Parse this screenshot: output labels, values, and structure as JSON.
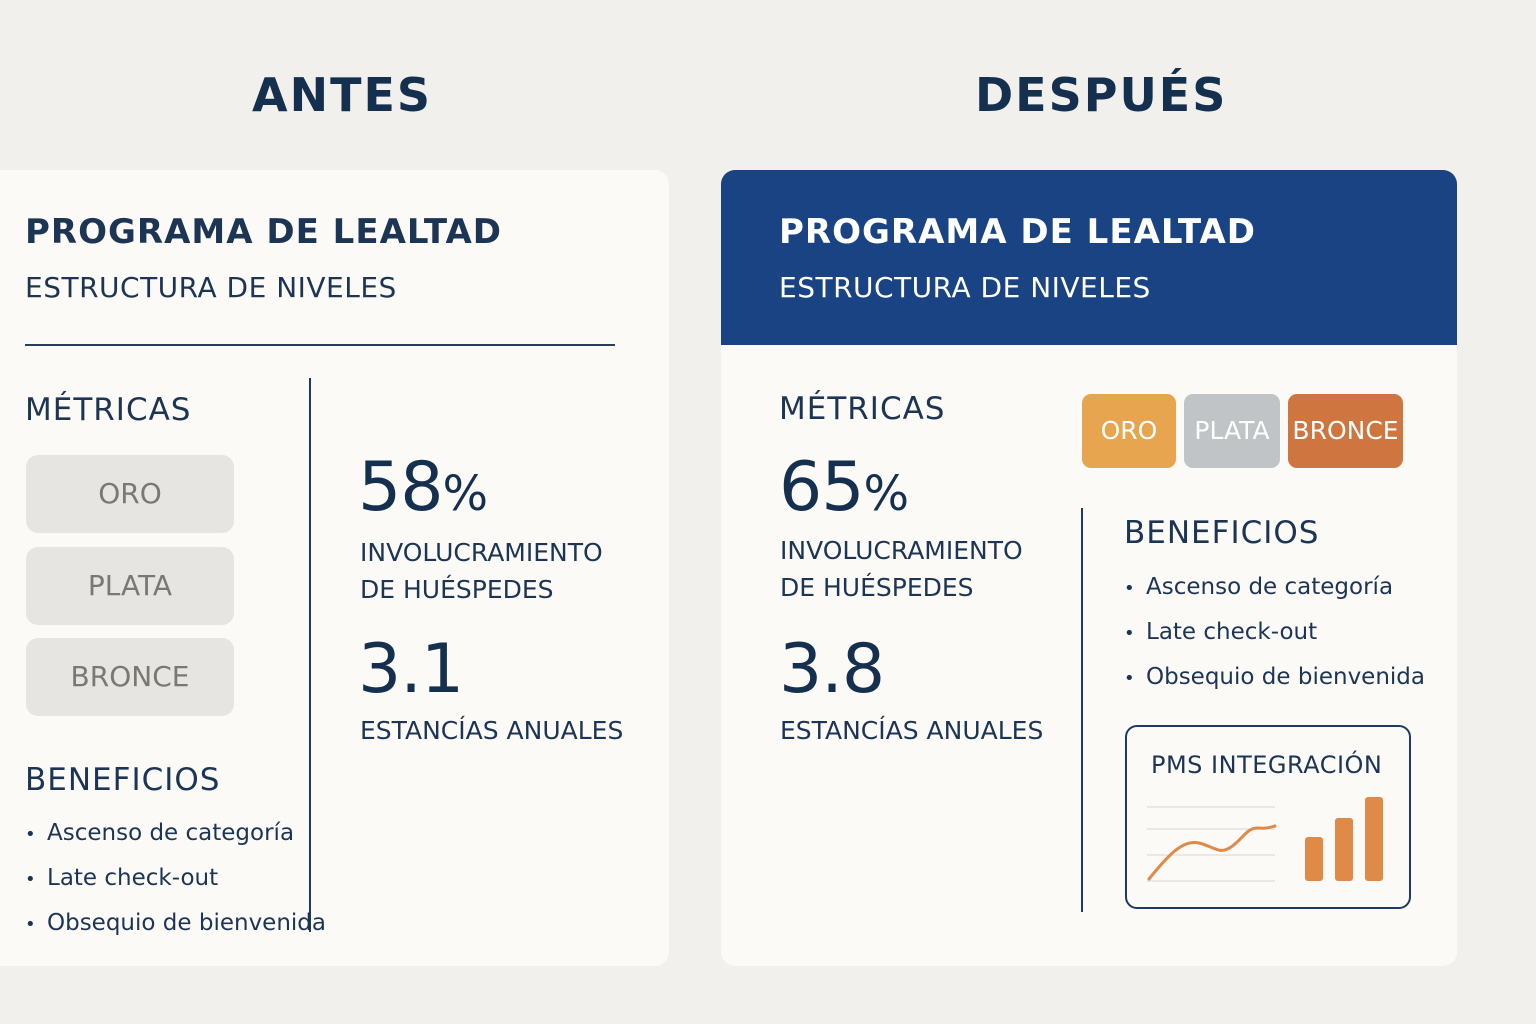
{
  "before": {
    "heading": "ANTES",
    "program_title": "PROGRAMA DE LEALTAD",
    "program_subtitle": "ESTRUCTURA DE NIVELES",
    "metrics_heading": "MÉTRICAS",
    "tiers": [
      "ORO",
      "PLATA",
      "BRONCE"
    ],
    "engagement_value": "58",
    "engagement_unit": "%",
    "engagement_label_1": "INVOLUCRAMIENTO",
    "engagement_label_2": "DE HUÉSPEDES",
    "stays_value": "3.1",
    "stays_label": "ESTANCÍAS ANUALES",
    "benefits_heading": "BENEFICIOS",
    "benefits": [
      "Ascenso de categoría",
      "Late check-out",
      "Obsequio de bienvenida"
    ]
  },
  "after": {
    "heading": "DESPUÉS",
    "program_title": "PROGRAMA DE LEALTAD",
    "program_subtitle": "ESTRUCTURA DE NIVELES",
    "metrics_heading": "MÉTRICAS",
    "tiers": [
      "ORO",
      "PLATA",
      "BRONCE"
    ],
    "engagement_value": "65",
    "engagement_unit": "%",
    "engagement_label_1": "INVOLUCRAMIENTO",
    "engagement_label_2": "DE HUÉSPEDES",
    "stays_value": "3.8",
    "stays_label": "ESTANCÍAS ANUALES",
    "benefits_heading": "BENEFICIOS",
    "benefits": [
      "Ascenso de categoría",
      "Late check-out",
      "Obsequio de bienvenida"
    ],
    "pms_title": "PMS INTEGRACIÓN"
  },
  "colors": {
    "header_band": "#1a4384",
    "gold": "#e6a54e",
    "silver": "#c1c4c6",
    "bronze": "#cf7640",
    "chart_orange": "#e08a48"
  }
}
